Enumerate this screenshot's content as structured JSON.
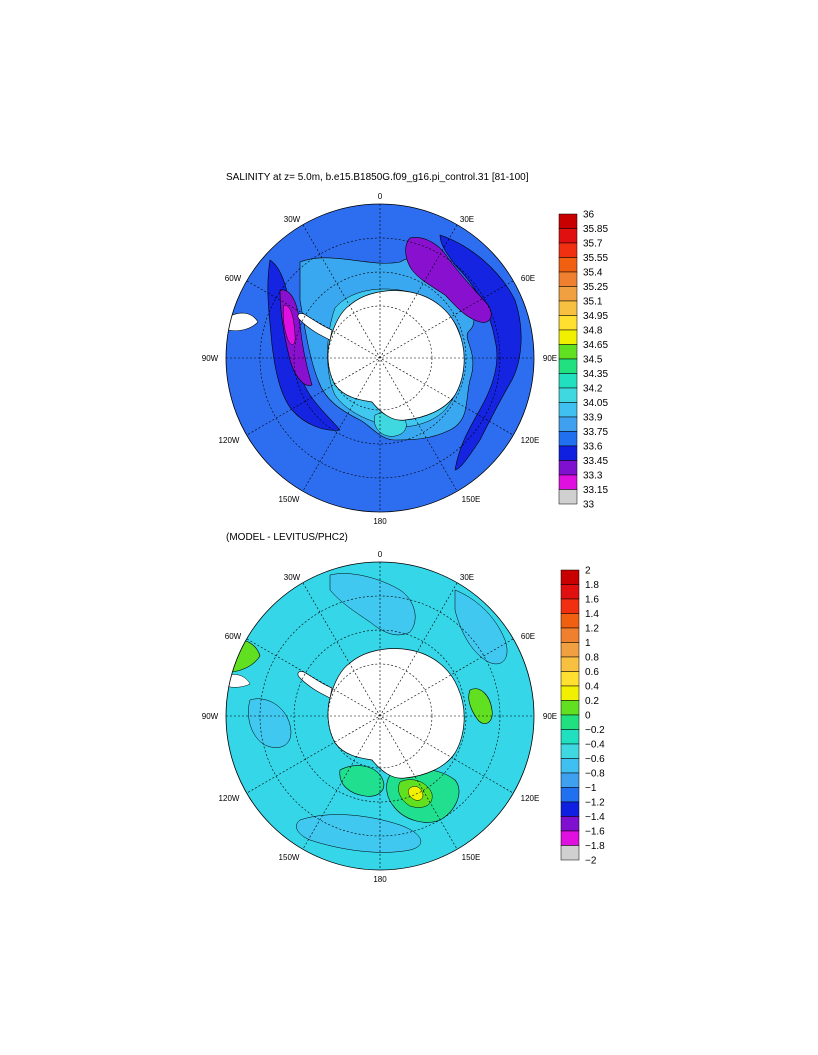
{
  "panel1": {
    "title": "SALINITY at z=   5.0m, b.e15.B1850G.f09_g16.pi_control.31 [81-100]",
    "colorbar": {
      "labels": [
        "36",
        "35.85",
        "35.7",
        "35.55",
        "35.4",
        "35.25",
        "35.1",
        "34.95",
        "34.8",
        "34.65",
        "34.5",
        "34.35",
        "34.2",
        "34.05",
        "33.9",
        "33.75",
        "33.6",
        "33.45",
        "33.3",
        "33.15",
        "33"
      ],
      "colors": [
        "#c80000",
        "#e01010",
        "#f03010",
        "#f06010",
        "#f08030",
        "#f0a040",
        "#f8c040",
        "#ffe030",
        "#f0f000",
        "#60e020",
        "#20e080",
        "#20e0c0",
        "#40d8e0",
        "#40c0f0",
        "#40a0f0",
        "#2070f0",
        "#1020e0",
        "#8010d0",
        "#e010e0",
        "#d0d0d0",
        "#707070"
      ]
    },
    "labels": {
      "lon_0": "0",
      "lon_30e": "30E",
      "lon_60e": "60E",
      "lon_90e": "90E",
      "lon_120e": "120E",
      "lon_150e": "150E",
      "lon_180": "180",
      "lon_150w": "150W",
      "lon_120w": "120W",
      "lon_90w": "90W",
      "lon_60w": "60W",
      "lon_30w": "30W"
    }
  },
  "panel2": {
    "title": "(MODEL - LEVITUS/PHC2)",
    "colorbar": {
      "labels": [
        "2",
        "1.8",
        "1.6",
        "1.4",
        "1.2",
        "1",
        "0.8",
        "0.6",
        "0.4",
        "0.2",
        "0",
        "−0.2",
        "−0.4",
        "−0.6",
        "−0.8",
        "−1",
        "−1.2",
        "−1.4",
        "−1.6",
        "−1.8",
        "−2"
      ],
      "colors": [
        "#c80000",
        "#e01010",
        "#f03010",
        "#f06010",
        "#f08030",
        "#f0a040",
        "#f8c040",
        "#ffe030",
        "#f0f000",
        "#60e020",
        "#20e080",
        "#20e0c0",
        "#40d8e0",
        "#40c0f0",
        "#40a0f0",
        "#2070f0",
        "#1020e0",
        "#8010d0",
        "#e010e0",
        "#d0d0d0",
        "#707070"
      ]
    },
    "labels": {
      "lon_0": "0",
      "lon_30e": "30E",
      "lon_60e": "60E",
      "lon_90e": "90E",
      "lon_120e": "120E",
      "lon_150e": "150E",
      "lon_180": "180",
      "lon_150w": "150W",
      "lon_120w": "120W",
      "lon_90w": "90W",
      "lon_60w": "60W",
      "lon_30w": "30W"
    }
  },
  "colors": {
    "ocean_top": "#2d6ef0",
    "ocean_top_coastal": "#3aa8f0",
    "ocean_top_band": "#1424e0",
    "ocean_top_purple": "#8a10d0",
    "ocean_top_magenta": "#e010e0",
    "ocean_bottom": "#34d6e8",
    "ocean_bottom_light": "#40c8f0",
    "ocean_bottom_green": "#20e090",
    "ocean_bottom_lime": "#60e020",
    "land": "#ffffff"
  }
}
